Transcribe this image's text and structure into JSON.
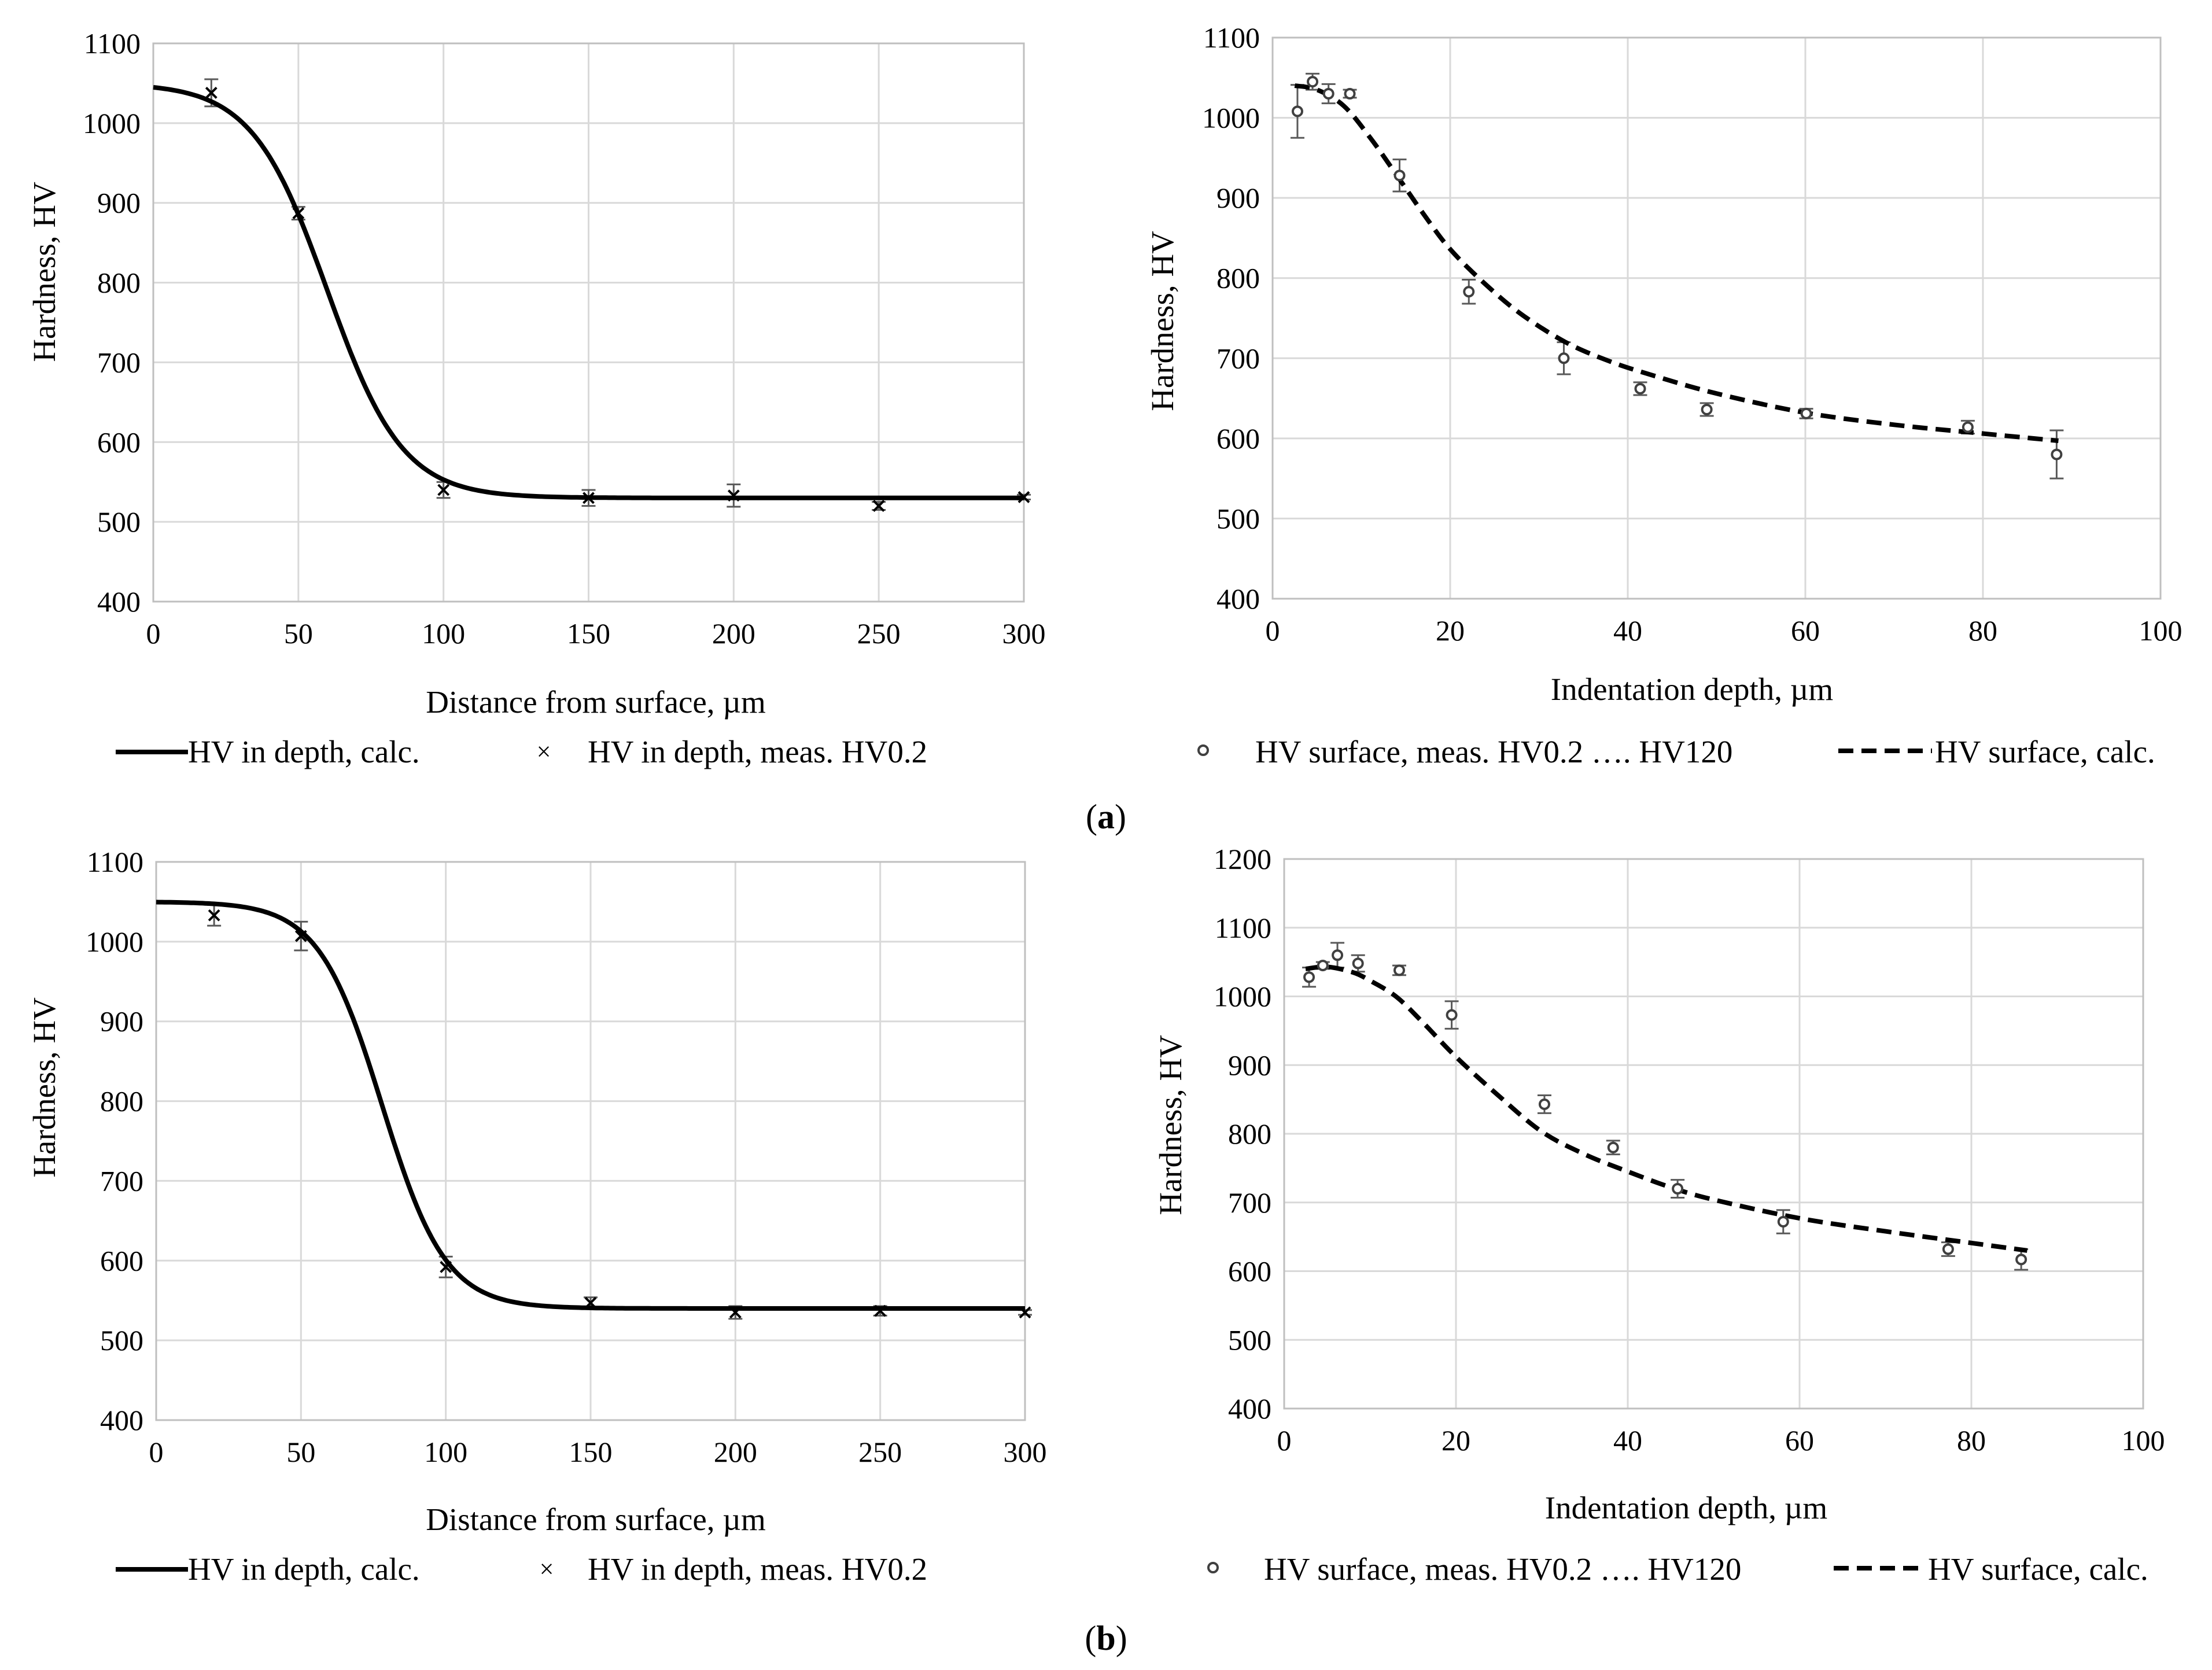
{
  "panel_labels": {
    "a": {
      "open": "(",
      "letter": "a",
      "close": ")"
    },
    "b": {
      "open": "(",
      "letter": "b",
      "close": ")"
    }
  },
  "colors": {
    "line": "#000000",
    "grid": "#d9d9d9",
    "frame": "#bfbfbf",
    "marker": "#404040",
    "error_bar": "#595959"
  },
  "chart_data": [
    {
      "id": "a-depth",
      "type": "line",
      "title": "",
      "xlabel": "Distance from surface, µm",
      "ylabel": "Hardness, HV",
      "xlim": [
        0,
        300
      ],
      "ylim": [
        400,
        1100
      ],
      "xticks": [
        0,
        50,
        100,
        150,
        200,
        250,
        300
      ],
      "yticks": [
        400,
        500,
        600,
        700,
        800,
        900,
        1000,
        1100
      ],
      "grid": true,
      "calc_curve": {
        "kind": "sigmoid",
        "top": 1050,
        "bottom": 530,
        "center": 60,
        "width": 13
      },
      "series": [
        {
          "name": "HV in depth, calc.",
          "style": "solid-line",
          "x": [
            0,
            10,
            20,
            30,
            40,
            50,
            60,
            70,
            80,
            90,
            100,
            110,
            120,
            130,
            150,
            200,
            250,
            300
          ],
          "y": [
            1046,
            1040,
            1025,
            997,
            953,
            882,
            790,
            694,
            620,
            572,
            548,
            537,
            533,
            531,
            530,
            530,
            530,
            530
          ]
        },
        {
          "name": "HV in depth, meas. HV0.2",
          "style": "x-marker",
          "x": [
            20,
            50,
            100,
            150,
            200,
            250,
            300
          ],
          "y": [
            1038,
            887,
            540,
            530,
            533,
            520,
            531
          ],
          "err": [
            17,
            8,
            10,
            10,
            14,
            5,
            3
          ]
        }
      ],
      "legend": "bottom"
    },
    {
      "id": "a-surface",
      "type": "line",
      "title": "",
      "xlabel": "Indentation depth, µm",
      "ylabel": "Hardness, HV",
      "xlim": [
        0,
        100
      ],
      "ylim": [
        400,
        1100
      ],
      "xticks": [
        0,
        20,
        40,
        60,
        80,
        100
      ],
      "yticks": [
        400,
        500,
        600,
        700,
        800,
        900,
        1000,
        1100
      ],
      "grid": true,
      "series": [
        {
          "name": "HV surface, meas. HV0.2 …. HV120",
          "style": "circle-marker",
          "x": [
            2.8,
            4.5,
            6.3,
            8.7,
            14.3,
            22.1,
            32.8,
            41.4,
            48.9,
            60.1,
            78.3,
            88.3
          ],
          "y": [
            1008,
            1045,
            1030,
            1030,
            928,
            783,
            700,
            662,
            636,
            631,
            614,
            580
          ],
          "err": [
            33,
            10,
            12,
            5,
            20,
            15,
            20,
            8,
            8,
            6,
            8,
            30
          ]
        },
        {
          "name": "HV surface, calc.",
          "style": "dashed-line",
          "x": [
            2.5,
            5,
            8,
            11,
            14,
            17,
            20,
            24,
            28,
            33,
            38,
            43,
            50,
            60,
            70,
            80,
            88.5
          ],
          "y": [
            1040,
            1035,
            1015,
            975,
            928,
            880,
            836,
            792,
            755,
            720,
            696,
            678,
            656,
            632,
            617,
            606,
            597
          ]
        }
      ],
      "legend": "bottom"
    },
    {
      "id": "b-depth",
      "type": "line",
      "title": "",
      "xlabel": "Distance from surface, µm",
      "ylabel": "Hardness, HV",
      "xlim": [
        0,
        300
      ],
      "ylim": [
        400,
        1100
      ],
      "xticks": [
        0,
        50,
        100,
        150,
        200,
        250,
        300
      ],
      "yticks": [
        400,
        500,
        600,
        700,
        800,
        900,
        1000,
        1100
      ],
      "grid": true,
      "calc_curve": {
        "kind": "sigmoid",
        "top": 1050,
        "bottom": 540,
        "center": 78,
        "width": 11
      },
      "series": [
        {
          "name": "HV in depth, calc.",
          "style": "solid-line",
          "x": [
            0,
            10,
            20,
            30,
            40,
            50,
            60,
            70,
            80,
            90,
            100,
            110,
            120,
            140,
            160,
            200,
            250,
            300
          ],
          "y": [
            1047,
            1046,
            1041,
            1032,
            1014,
            986,
            932,
            848,
            752,
            660,
            603,
            572,
            555,
            545,
            541,
            540,
            540,
            540
          ]
        },
        {
          "name": "HV in depth, meas. HV0.2",
          "style": "x-marker",
          "x": [
            20,
            50,
            100,
            150,
            200,
            250,
            300
          ],
          "y": [
            1033,
            1007,
            592,
            547,
            535,
            537,
            535
          ],
          "err": [
            13,
            18,
            13,
            7,
            8,
            6,
            3
          ]
        }
      ],
      "legend": "bottom"
    },
    {
      "id": "b-surface",
      "type": "line",
      "title": "",
      "xlabel": "Indentation depth, µm",
      "ylabel": "Hardness, HV",
      "xlim": [
        0,
        100
      ],
      "ylim": [
        400,
        1200
      ],
      "xticks": [
        0,
        20,
        40,
        60,
        80,
        100
      ],
      "yticks": [
        400,
        500,
        600,
        700,
        800,
        900,
        1000,
        1100,
        1200
      ],
      "grid": true,
      "series": [
        {
          "name": "HV surface, meas. HV0.2 …. HV120",
          "style": "circle-marker",
          "x": [
            2.9,
            4.5,
            6.2,
            8.6,
            13.4,
            19.5,
            30.3,
            38.3,
            45.8,
            58.1,
            77.3,
            85.8
          ],
          "y": [
            1028,
            1045,
            1060,
            1048,
            1038,
            973,
            843,
            780,
            720,
            672,
            632,
            617
          ],
          "err": [
            14,
            5,
            18,
            12,
            7,
            20,
            13,
            10,
            13,
            17,
            10,
            15
          ]
        },
        {
          "name": "HV surface, calc.",
          "style": "dashed-line",
          "x": [
            2.5,
            5,
            8,
            10,
            13,
            16,
            20,
            25,
            30,
            35,
            40,
            45,
            50,
            60,
            70,
            80,
            86.5
          ],
          "y": [
            1040,
            1043,
            1035,
            1023,
            1000,
            964,
            912,
            855,
            803,
            770,
            745,
            722,
            704,
            677,
            658,
            641,
            630
          ]
        }
      ],
      "legend": "bottom"
    }
  ]
}
